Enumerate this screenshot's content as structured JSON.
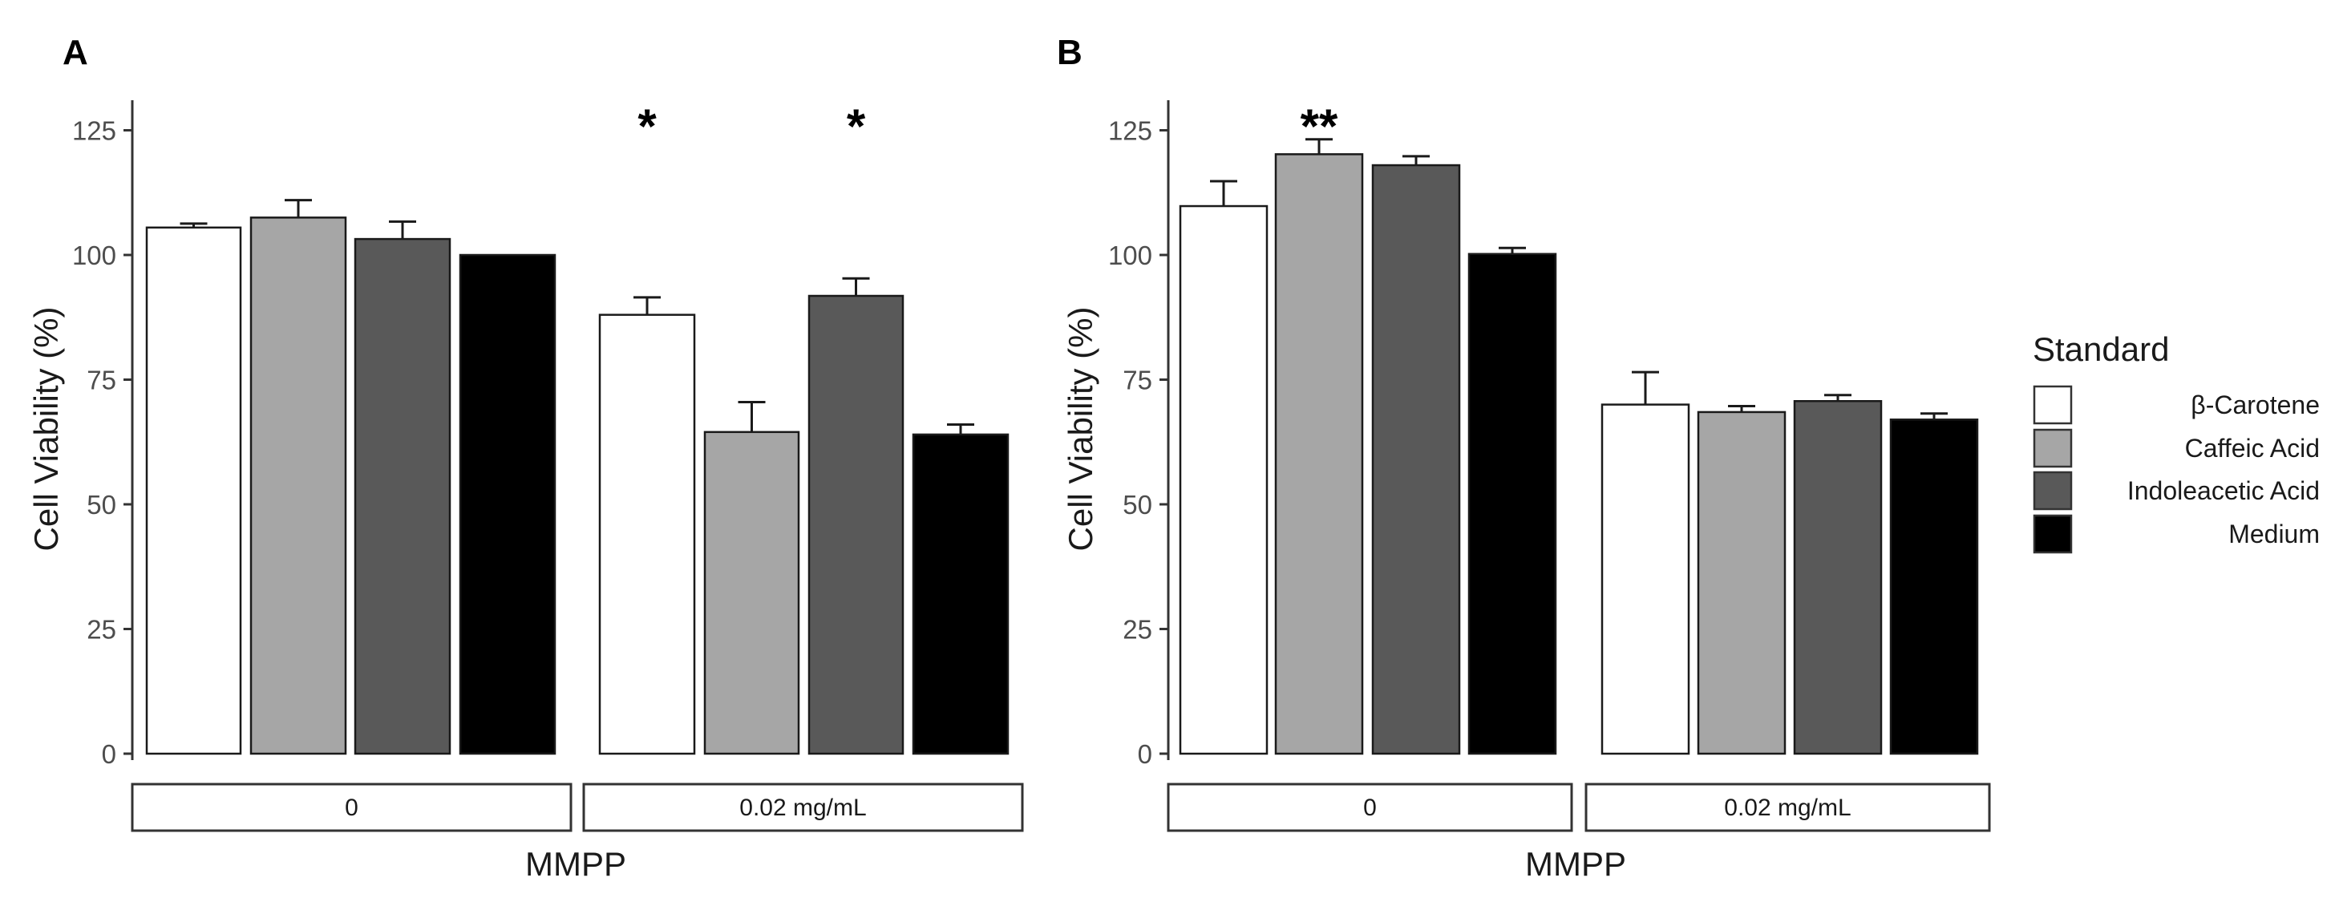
{
  "chart_data": [
    {
      "panel": "A",
      "type": "bar",
      "xlabel": "MMPP",
      "ylabel": "Cell Viability (%)",
      "ylim": [
        0,
        130
      ],
      "yticks": [
        "0",
        "25",
        "50",
        "75",
        "100",
        "125"
      ],
      "groups": [
        {
          "label": "0",
          "bars": [
            {
              "series": "β-Carotene",
              "value": 105.5,
              "error": 0.8,
              "sig": ""
            },
            {
              "series": "Caffeic Acid",
              "value": 107.5,
              "error": 3.5,
              "sig": ""
            },
            {
              "series": "Indoleacetic Acid",
              "value": 103.2,
              "error": 3.5,
              "sig": ""
            },
            {
              "series": "Medium",
              "value": 100.0,
              "error": 0,
              "sig": ""
            }
          ]
        },
        {
          "label": "0.02 mg/mL",
          "bars": [
            {
              "series": "β-Carotene",
              "value": 88.0,
              "error": 3.5,
              "sig": "*"
            },
            {
              "series": "Caffeic Acid",
              "value": 64.5,
              "error": 6.0,
              "sig": ""
            },
            {
              "series": "Indoleacetic Acid",
              "value": 91.8,
              "error": 3.5,
              "sig": "*"
            },
            {
              "series": "Medium",
              "value": 64.0,
              "error": 2.0,
              "sig": ""
            }
          ]
        }
      ]
    },
    {
      "panel": "B",
      "type": "bar",
      "xlabel": "MMPP",
      "ylabel": "Cell Viability (%)",
      "ylim": [
        0,
        130
      ],
      "yticks": [
        "0",
        "25",
        "50",
        "75",
        "100",
        "125"
      ],
      "groups": [
        {
          "label": "0",
          "bars": [
            {
              "series": "β-Carotene",
              "value": 109.8,
              "error": 5.0,
              "sig": ""
            },
            {
              "series": "Caffeic Acid",
              "value": 120.2,
              "error": 3.0,
              "sig": "**"
            },
            {
              "series": "Indoleacetic Acid",
              "value": 118.0,
              "error": 1.8,
              "sig": ""
            },
            {
              "series": "Medium",
              "value": 100.2,
              "error": 1.2,
              "sig": ""
            }
          ]
        },
        {
          "label": "0.02 mg/mL",
          "bars": [
            {
              "series": "β-Carotene",
              "value": 70.0,
              "error": 6.5,
              "sig": ""
            },
            {
              "series": "Caffeic Acid",
              "value": 68.5,
              "error": 1.2,
              "sig": ""
            },
            {
              "series": "Indoleacetic Acid",
              "value": 70.7,
              "error": 1.2,
              "sig": ""
            },
            {
              "series": "Medium",
              "value": 67.0,
              "error": 1.2,
              "sig": ""
            }
          ]
        }
      ]
    }
  ],
  "legend": {
    "title": "Standard",
    "items": [
      {
        "label": "β-Carotene",
        "color": "#ffffff"
      },
      {
        "label": "Caffeic Acid",
        "color": "#a6a6a6"
      },
      {
        "label": "Indoleacetic Acid",
        "color": "#595959"
      },
      {
        "label": "Medium",
        "color": "#000000"
      }
    ]
  }
}
